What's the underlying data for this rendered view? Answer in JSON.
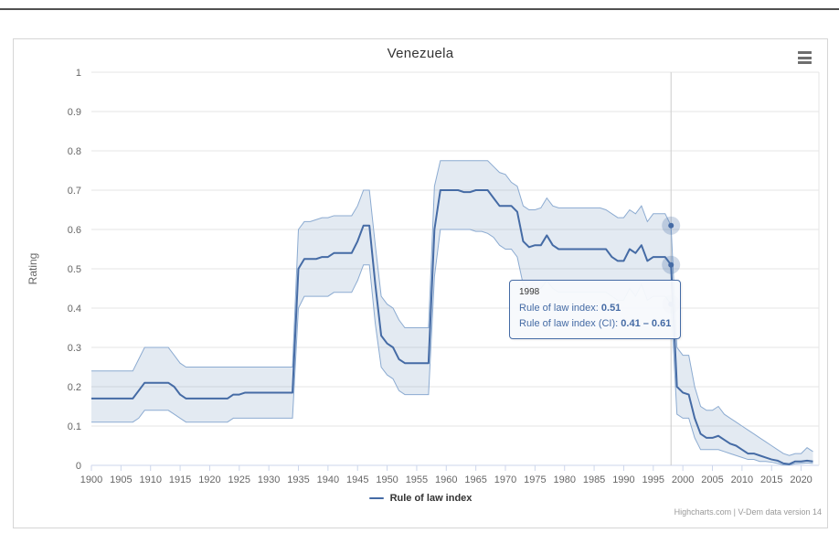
{
  "chart": {
    "title": "Venezuela",
    "y_axis_title": "Rating",
    "legend_label": "Rule of law index",
    "credits": "Highcharts.com | V-Dem data version 14",
    "series_color": "#456ba5",
    "band_fill": "rgba(69,114,167,0.15)",
    "band_edge": "#8cabd1",
    "grid_color": "#e6e6e6",
    "axis_line_color": "#ccd6eb",
    "crosshair_color": "#cccccc",
    "label_color": "#666666"
  },
  "tooltip": {
    "header": "1998",
    "lines": [
      {
        "label": "Rule of law index:",
        "value": "0.51"
      },
      {
        "label": "Rule of law index (CI):",
        "value": "0.41 – 0.61"
      }
    ]
  },
  "chart_data": {
    "type": "line",
    "title": "Venezuela",
    "xlabel": "",
    "ylabel": "Rating",
    "xlim": [
      1900,
      2023
    ],
    "ylim": [
      0,
      1
    ],
    "grid": true,
    "legend_position": "bottom",
    "x_ticks": [
      1900,
      1905,
      1910,
      1915,
      1920,
      1925,
      1930,
      1935,
      1940,
      1945,
      1950,
      1955,
      1960,
      1965,
      1970,
      1975,
      1980,
      1985,
      1990,
      1995,
      2000,
      2005,
      2010,
      2015,
      2020
    ],
    "y_ticks": [
      0,
      0.1,
      0.2,
      0.3,
      0.4,
      0.5,
      0.6,
      0.7,
      0.8,
      0.9,
      1
    ],
    "x": [
      1900,
      1901,
      1902,
      1903,
      1904,
      1905,
      1906,
      1907,
      1908,
      1909,
      1910,
      1911,
      1912,
      1913,
      1914,
      1915,
      1916,
      1917,
      1918,
      1919,
      1920,
      1921,
      1922,
      1923,
      1924,
      1925,
      1926,
      1927,
      1928,
      1929,
      1930,
      1931,
      1932,
      1933,
      1934,
      1935,
      1936,
      1937,
      1938,
      1939,
      1940,
      1941,
      1942,
      1943,
      1944,
      1945,
      1946,
      1947,
      1948,
      1949,
      1950,
      1951,
      1952,
      1953,
      1954,
      1955,
      1956,
      1957,
      1958,
      1959,
      1960,
      1961,
      1962,
      1963,
      1964,
      1965,
      1966,
      1967,
      1968,
      1969,
      1970,
      1971,
      1972,
      1973,
      1974,
      1975,
      1976,
      1977,
      1978,
      1979,
      1980,
      1981,
      1982,
      1983,
      1984,
      1985,
      1986,
      1987,
      1988,
      1989,
      1990,
      1991,
      1992,
      1993,
      1994,
      1995,
      1996,
      1997,
      1998,
      1999,
      2000,
      2001,
      2002,
      2003,
      2004,
      2005,
      2006,
      2007,
      2008,
      2009,
      2010,
      2011,
      2012,
      2013,
      2014,
      2015,
      2016,
      2017,
      2018,
      2019,
      2020,
      2021,
      2022
    ],
    "series": [
      {
        "name": "Rule of law index",
        "type": "line",
        "color": "#456ba5",
        "values": [
          0.17,
          0.17,
          0.17,
          0.17,
          0.17,
          0.17,
          0.17,
          0.17,
          0.19,
          0.21,
          0.21,
          0.21,
          0.21,
          0.21,
          0.2,
          0.18,
          0.17,
          0.17,
          0.17,
          0.17,
          0.17,
          0.17,
          0.17,
          0.17,
          0.18,
          0.18,
          0.185,
          0.185,
          0.185,
          0.185,
          0.185,
          0.185,
          0.185,
          0.185,
          0.185,
          0.5,
          0.525,
          0.525,
          0.525,
          0.53,
          0.53,
          0.54,
          0.54,
          0.54,
          0.54,
          0.57,
          0.61,
          0.61,
          0.46,
          0.33,
          0.31,
          0.3,
          0.27,
          0.26,
          0.26,
          0.26,
          0.26,
          0.26,
          0.6,
          0.7,
          0.7,
          0.7,
          0.7,
          0.695,
          0.695,
          0.7,
          0.7,
          0.7,
          0.68,
          0.66,
          0.66,
          0.66,
          0.645,
          0.57,
          0.555,
          0.56,
          0.56,
          0.585,
          0.56,
          0.55,
          0.55,
          0.55,
          0.55,
          0.55,
          0.55,
          0.55,
          0.55,
          0.55,
          0.53,
          0.52,
          0.52,
          0.55,
          0.54,
          0.56,
          0.52,
          0.53,
          0.53,
          0.53,
          0.51,
          0.2,
          0.185,
          0.18,
          0.12,
          0.08,
          0.07,
          0.07,
          0.075,
          0.065,
          0.055,
          0.05,
          0.04,
          0.03,
          0.03,
          0.025,
          0.02,
          0.015,
          0.012,
          0.005,
          0.003,
          0.01,
          0.01,
          0.012,
          0.01
        ]
      },
      {
        "name": "Rule of law index (CI)",
        "type": "arearange",
        "fill_color": "rgba(69,114,167,0.15)",
        "edge_color": "#8cabd1",
        "low": [
          0.11,
          0.11,
          0.11,
          0.11,
          0.11,
          0.11,
          0.11,
          0.11,
          0.12,
          0.14,
          0.14,
          0.14,
          0.14,
          0.14,
          0.13,
          0.12,
          0.11,
          0.11,
          0.11,
          0.11,
          0.11,
          0.11,
          0.11,
          0.11,
          0.12,
          0.12,
          0.12,
          0.12,
          0.12,
          0.12,
          0.12,
          0.12,
          0.12,
          0.12,
          0.12,
          0.4,
          0.43,
          0.43,
          0.43,
          0.43,
          0.43,
          0.44,
          0.44,
          0.44,
          0.44,
          0.47,
          0.51,
          0.51,
          0.36,
          0.25,
          0.23,
          0.22,
          0.19,
          0.18,
          0.18,
          0.18,
          0.18,
          0.18,
          0.48,
          0.6,
          0.6,
          0.6,
          0.6,
          0.6,
          0.6,
          0.595,
          0.595,
          0.59,
          0.58,
          0.56,
          0.55,
          0.55,
          0.53,
          0.46,
          0.45,
          0.45,
          0.45,
          0.47,
          0.45,
          0.44,
          0.44,
          0.44,
          0.44,
          0.44,
          0.44,
          0.44,
          0.44,
          0.44,
          0.43,
          0.42,
          0.42,
          0.45,
          0.43,
          0.46,
          0.42,
          0.43,
          0.43,
          0.43,
          0.41,
          0.13,
          0.12,
          0.12,
          0.07,
          0.04,
          0.04,
          0.04,
          0.04,
          0.035,
          0.03,
          0.025,
          0.02,
          0.015,
          0.015,
          0.01,
          0.01,
          0.008,
          0.005,
          0.001,
          0.001,
          0.004,
          0.005,
          0.006,
          0.005
        ],
        "high": [
          0.24,
          0.24,
          0.24,
          0.24,
          0.24,
          0.24,
          0.24,
          0.24,
          0.27,
          0.3,
          0.3,
          0.3,
          0.3,
          0.3,
          0.28,
          0.26,
          0.25,
          0.25,
          0.25,
          0.25,
          0.25,
          0.25,
          0.25,
          0.25,
          0.25,
          0.25,
          0.25,
          0.25,
          0.25,
          0.25,
          0.25,
          0.25,
          0.25,
          0.25,
          0.25,
          0.6,
          0.62,
          0.62,
          0.625,
          0.63,
          0.63,
          0.635,
          0.635,
          0.635,
          0.635,
          0.66,
          0.7,
          0.7,
          0.56,
          0.43,
          0.41,
          0.4,
          0.37,
          0.35,
          0.35,
          0.35,
          0.35,
          0.35,
          0.71,
          0.775,
          0.775,
          0.775,
          0.775,
          0.775,
          0.775,
          0.775,
          0.775,
          0.775,
          0.76,
          0.745,
          0.74,
          0.72,
          0.71,
          0.66,
          0.65,
          0.65,
          0.655,
          0.68,
          0.66,
          0.655,
          0.655,
          0.655,
          0.655,
          0.655,
          0.655,
          0.655,
          0.655,
          0.65,
          0.64,
          0.63,
          0.63,
          0.65,
          0.64,
          0.66,
          0.62,
          0.64,
          0.64,
          0.64,
          0.61,
          0.3,
          0.28,
          0.28,
          0.2,
          0.15,
          0.14,
          0.14,
          0.15,
          0.13,
          0.12,
          0.11,
          0.1,
          0.09,
          0.08,
          0.07,
          0.06,
          0.05,
          0.04,
          0.03,
          0.025,
          0.03,
          0.03,
          0.045,
          0.035
        ]
      }
    ],
    "hover": {
      "year": 1998,
      "value": 0.51,
      "ci_low": 0.41,
      "ci_high": 0.61
    }
  }
}
